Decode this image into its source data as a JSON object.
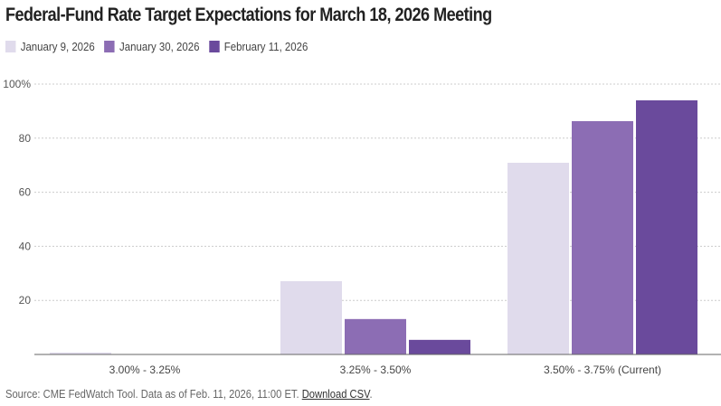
{
  "title": "Federal-Fund Rate Target Expectations for March 18, 2026 Meeting",
  "source_text": "Source: CME FedWatch Tool. Data as of Feb. 11, 2026, 11:00 ET.",
  "download_link": "Download CSV",
  "chart_data": {
    "type": "bar",
    "title": "Federal-Fund Rate Target Expectations for March 18, 2026 Meeting",
    "categories": [
      "3.00% - 3.25%",
      "3.25% - 3.50%",
      "3.50% - 3.75% (Current)"
    ],
    "series": [
      {
        "name": "January 9, 2026",
        "color": "#e0dbec",
        "values": [
          0.7,
          27.1,
          70.9
        ]
      },
      {
        "name": "January 30, 2026",
        "color": "#8c6db4",
        "values": [
          0,
          13.1,
          86.3
        ]
      },
      {
        "name": "February 11, 2026",
        "color": "#6a4a9c",
        "values": [
          0,
          5.4,
          94.0
        ]
      }
    ],
    "ylim": [
      0,
      100
    ],
    "yticks": [
      "20",
      "40",
      "60",
      "80",
      "100%"
    ],
    "ytick_values": [
      20,
      40,
      60,
      80,
      100
    ],
    "grid": true,
    "legend_position": "top-left"
  }
}
